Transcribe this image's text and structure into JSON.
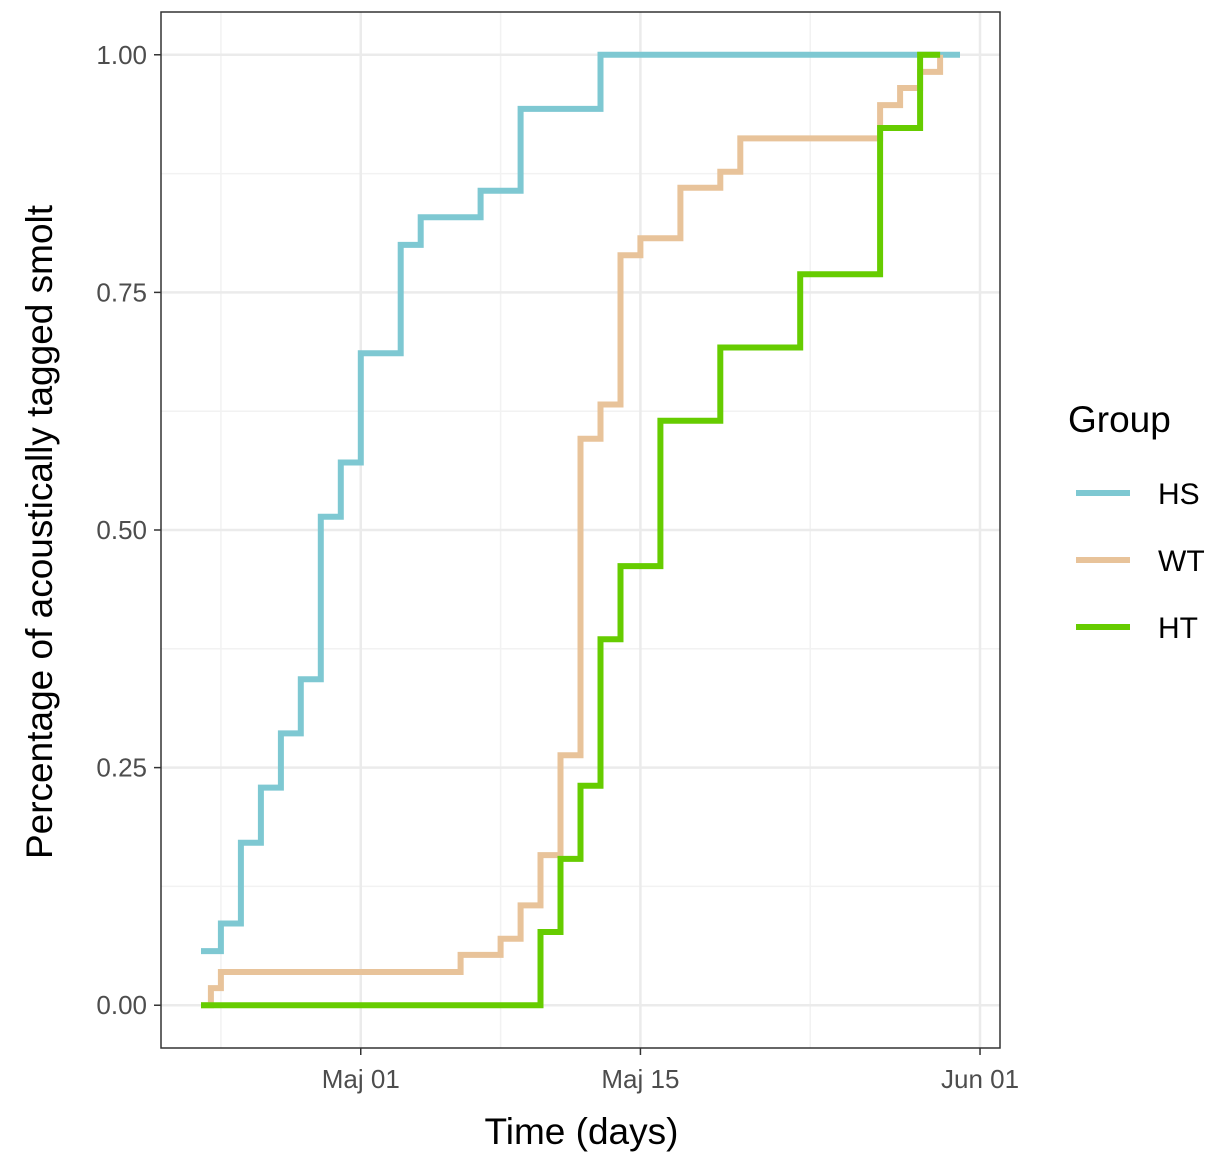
{
  "chart_data": {
    "type": "line",
    "step": true,
    "xlabel": "Time (days)",
    "ylabel": "Percentage of acoustically tagged smolt",
    "xlim": [
      "2023-04-21",
      "2023-06-02"
    ],
    "ylim": [
      -0.045,
      1.045
    ],
    "x_ticks": [
      {
        "date": "2023-05-01",
        "label": "Maj 01"
      },
      {
        "date": "2023-05-15",
        "label": "Maj 15"
      },
      {
        "date": "2023-06-01",
        "label": "Jun 01"
      }
    ],
    "y_ticks": [
      {
        "value": 0,
        "label": "0.00"
      },
      {
        "value": 0.25,
        "label": "0.25"
      },
      {
        "value": 0.5,
        "label": "0.50"
      },
      {
        "value": 0.75,
        "label": "0.75"
      },
      {
        "value": 1,
        "label": "1.00"
      }
    ],
    "grid": true,
    "legend": {
      "title": "Group",
      "position": "right"
    },
    "series": [
      {
        "name": "HS",
        "color": "#7ec8d2",
        "points": [
          [
            "2023-04-23",
            0.057
          ],
          [
            "2023-04-24",
            0.086
          ],
          [
            "2023-04-25",
            0.171
          ],
          [
            "2023-04-26",
            0.229
          ],
          [
            "2023-04-27",
            0.286
          ],
          [
            "2023-04-28",
            0.343
          ],
          [
            "2023-04-29",
            0.514
          ],
          [
            "2023-04-30",
            0.571
          ],
          [
            "2023-05-01",
            0.686
          ],
          [
            "2023-05-03",
            0.8
          ],
          [
            "2023-05-04",
            0.829
          ],
          [
            "2023-05-07",
            0.857
          ],
          [
            "2023-05-09",
            0.943
          ],
          [
            "2023-05-13",
            1.0
          ],
          [
            "2023-05-31",
            1.0
          ]
        ]
      },
      {
        "name": "WT",
        "color": "#e8c39a",
        "points": [
          [
            "2023-04-23",
            0.0
          ],
          [
            "2023-04-23.5",
            0.018
          ],
          [
            "2023-04-24",
            0.035
          ],
          [
            "2023-05-06",
            0.053
          ],
          [
            "2023-05-08",
            0.07
          ],
          [
            "2023-05-09",
            0.105
          ],
          [
            "2023-05-10",
            0.158
          ],
          [
            "2023-05-11",
            0.263
          ],
          [
            "2023-05-12",
            0.596
          ],
          [
            "2023-05-13",
            0.632
          ],
          [
            "2023-05-14",
            0.789
          ],
          [
            "2023-05-15",
            0.807
          ],
          [
            "2023-05-17",
            0.86
          ],
          [
            "2023-05-19",
            0.877
          ],
          [
            "2023-05-20",
            0.912
          ],
          [
            "2023-05-27",
            0.947
          ],
          [
            "2023-05-28",
            0.965
          ],
          [
            "2023-05-29",
            0.982
          ],
          [
            "2023-05-30",
            1.0
          ]
        ]
      },
      {
        "name": "HT",
        "color": "#66cc00",
        "points": [
          [
            "2023-04-23",
            0.0
          ],
          [
            "2023-05-10",
            0.077
          ],
          [
            "2023-05-11",
            0.154
          ],
          [
            "2023-05-12",
            0.231
          ],
          [
            "2023-05-13",
            0.385
          ],
          [
            "2023-05-14",
            0.462
          ],
          [
            "2023-05-16",
            0.615
          ],
          [
            "2023-05-19",
            0.692
          ],
          [
            "2023-05-23",
            0.769
          ],
          [
            "2023-05-27",
            0.923
          ],
          [
            "2023-05-29",
            1.0
          ],
          [
            "2023-05-30",
            1.0
          ]
        ]
      }
    ]
  }
}
